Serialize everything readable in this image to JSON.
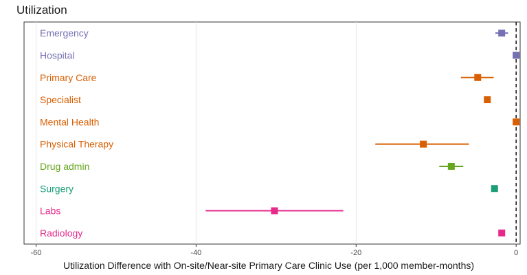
{
  "chart_data": {
    "type": "forest",
    "title": "Utilization",
    "xlabel": "Utilization Difference with On-site/Near-site Primary Care Clinic Use  (per 1,000 member-months)",
    "ylabel": "",
    "xlim": [
      -61.5,
      0.5
    ],
    "x_ticks": [
      -60,
      -40,
      -20,
      0
    ],
    "x_tick_labels": [
      "-60",
      "-40",
      "-20",
      "0"
    ],
    "reference_line": 0,
    "grid": "vertical",
    "legend": "none",
    "items": [
      {
        "label": "Emergency",
        "estimate": -1.8,
        "lower": -2.6,
        "upper": -1.0,
        "color": "#7570b3"
      },
      {
        "label": "Hospital",
        "estimate": 0.0,
        "lower": -0.3,
        "upper": 0.3,
        "color": "#7570b3"
      },
      {
        "label": "Primary Care",
        "estimate": -4.8,
        "lower": -6.9,
        "upper": -2.8,
        "color": "#d95f02"
      },
      {
        "label": "Specialist",
        "estimate": -3.6,
        "lower": -4.0,
        "upper": -3.2,
        "color": "#d95f02"
      },
      {
        "label": "Mental Health",
        "estimate": 0.0,
        "lower": -0.3,
        "upper": 0.3,
        "color": "#d95f02"
      },
      {
        "label": "Physical Therapy",
        "estimate": -11.6,
        "lower": -17.6,
        "upper": -5.9,
        "color": "#d95f02"
      },
      {
        "label": "Drug admin",
        "estimate": -8.1,
        "lower": -9.6,
        "upper": -6.6,
        "color": "#66a61e"
      },
      {
        "label": "Surgery",
        "estimate": -2.7,
        "lower": -3.0,
        "upper": -2.4,
        "color": "#1b9e77"
      },
      {
        "label": "Labs",
        "estimate": -30.2,
        "lower": -38.8,
        "upper": -21.6,
        "color": "#e7298a"
      },
      {
        "label": "Radiology",
        "estimate": -1.8,
        "lower": -2.1,
        "upper": -1.5,
        "color": "#e7298a"
      }
    ]
  }
}
